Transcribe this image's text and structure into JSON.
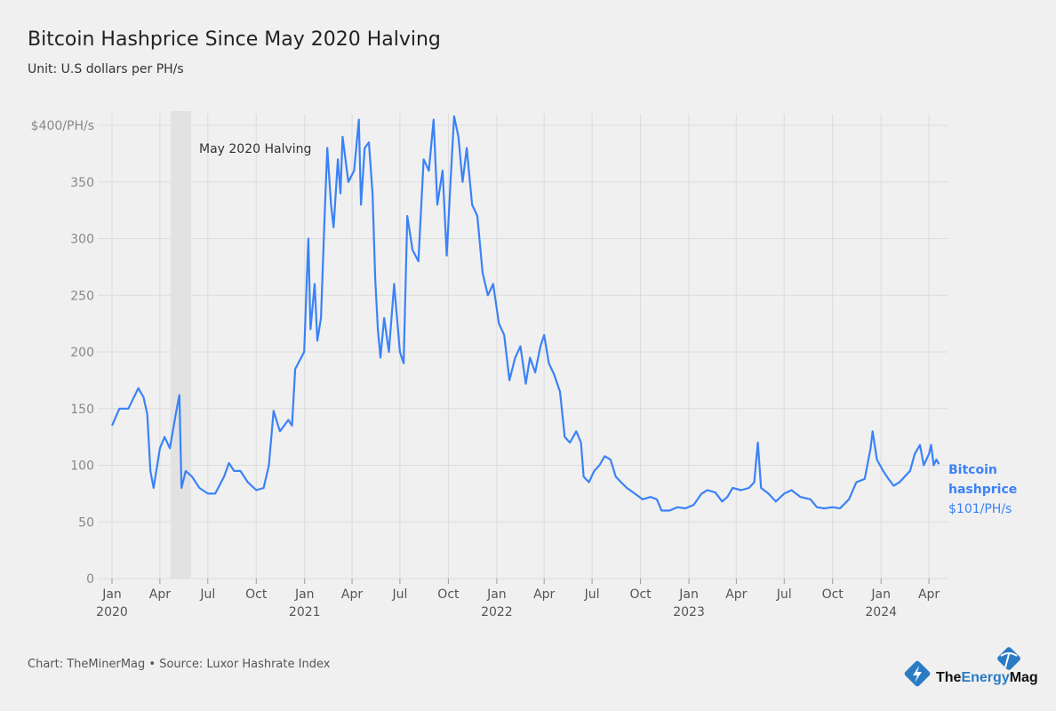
{
  "chart_data": {
    "type": "line",
    "title": "Bitcoin Hashprice Since May 2020 Halving",
    "subtitle": "Unit: U.S dollars per PH/s",
    "ylim": [
      0,
      400
    ],
    "y_ticks": [
      "0",
      "50",
      "100",
      "150",
      "200",
      "250",
      "300",
      "350",
      "$400/PH/s"
    ],
    "y_tick_values": [
      0,
      50,
      100,
      150,
      200,
      250,
      300,
      350,
      400
    ],
    "x_range": [
      "2020-01-01",
      "2024-04-20"
    ],
    "x_ticks": [
      {
        "date": "2020-01-01",
        "label": "Jan",
        "year": "2020"
      },
      {
        "date": "2020-04-01",
        "label": "Apr"
      },
      {
        "date": "2020-07-01",
        "label": "Jul"
      },
      {
        "date": "2020-10-01",
        "label": "Oct"
      },
      {
        "date": "2021-01-01",
        "label": "Jan",
        "year": "2021"
      },
      {
        "date": "2021-04-01",
        "label": "Apr"
      },
      {
        "date": "2021-07-01",
        "label": "Jul"
      },
      {
        "date": "2021-10-01",
        "label": "Oct"
      },
      {
        "date": "2022-01-01",
        "label": "Jan",
        "year": "2022"
      },
      {
        "date": "2022-04-01",
        "label": "Apr"
      },
      {
        "date": "2022-07-01",
        "label": "Jul"
      },
      {
        "date": "2022-10-01",
        "label": "Oct"
      },
      {
        "date": "2023-01-01",
        "label": "Jan",
        "year": "2023"
      },
      {
        "date": "2023-04-01",
        "label": "Apr"
      },
      {
        "date": "2023-07-01",
        "label": "Jul"
      },
      {
        "date": "2023-10-01",
        "label": "Oct"
      },
      {
        "date": "2024-01-01",
        "label": "Jan",
        "year": "2024"
      },
      {
        "date": "2024-04-01",
        "label": "Apr"
      }
    ],
    "grid": true,
    "annotation": {
      "label": "May 2020 Halving",
      "start": "2020-04-21",
      "end": "2020-05-30"
    },
    "series": [
      {
        "name": "Bitcoin hashprice",
        "end_label": "$101/PH/s",
        "color": "#3b82f6",
        "points": [
          [
            "2020-01-01",
            135
          ],
          [
            "2020-01-15",
            150
          ],
          [
            "2020-02-01",
            150
          ],
          [
            "2020-02-20",
            168
          ],
          [
            "2020-03-01",
            160
          ],
          [
            "2020-03-08",
            145
          ],
          [
            "2020-03-14",
            95
          ],
          [
            "2020-03-20",
            80
          ],
          [
            "2020-04-01",
            115
          ],
          [
            "2020-04-10",
            125
          ],
          [
            "2020-04-20",
            115
          ],
          [
            "2020-05-01",
            145
          ],
          [
            "2020-05-08",
            162
          ],
          [
            "2020-05-12",
            80
          ],
          [
            "2020-05-20",
            95
          ],
          [
            "2020-06-01",
            90
          ],
          [
            "2020-06-15",
            80
          ],
          [
            "2020-07-01",
            75
          ],
          [
            "2020-07-15",
            75
          ],
          [
            "2020-08-01",
            90
          ],
          [
            "2020-08-10",
            102
          ],
          [
            "2020-08-20",
            95
          ],
          [
            "2020-09-01",
            95
          ],
          [
            "2020-09-15",
            85
          ],
          [
            "2020-10-01",
            78
          ],
          [
            "2020-10-15",
            80
          ],
          [
            "2020-10-25",
            100
          ],
          [
            "2020-11-03",
            148
          ],
          [
            "2020-11-15",
            130
          ],
          [
            "2020-12-01",
            140
          ],
          [
            "2020-12-08",
            135
          ],
          [
            "2020-12-14",
            185
          ],
          [
            "2020-12-31",
            200
          ],
          [
            "2021-01-04",
            250
          ],
          [
            "2021-01-08",
            300
          ],
          [
            "2021-01-12",
            220
          ],
          [
            "2021-01-20",
            260
          ],
          [
            "2021-01-25",
            210
          ],
          [
            "2021-02-01",
            230
          ],
          [
            "2021-02-08",
            320
          ],
          [
            "2021-02-13",
            380
          ],
          [
            "2021-02-20",
            330
          ],
          [
            "2021-02-25",
            310
          ],
          [
            "2021-03-05",
            370
          ],
          [
            "2021-03-10",
            340
          ],
          [
            "2021-03-14",
            390
          ],
          [
            "2021-03-25",
            350
          ],
          [
            "2021-04-05",
            360
          ],
          [
            "2021-04-14",
            405
          ],
          [
            "2021-04-18",
            330
          ],
          [
            "2021-04-25",
            380
          ],
          [
            "2021-05-03",
            385
          ],
          [
            "2021-05-10",
            340
          ],
          [
            "2021-05-15",
            265
          ],
          [
            "2021-05-20",
            220
          ],
          [
            "2021-05-25",
            195
          ],
          [
            "2021-06-01",
            230
          ],
          [
            "2021-06-10",
            200
          ],
          [
            "2021-06-20",
            260
          ],
          [
            "2021-07-01",
            200
          ],
          [
            "2021-07-08",
            190
          ],
          [
            "2021-07-15",
            320
          ],
          [
            "2021-07-25",
            290
          ],
          [
            "2021-08-05",
            280
          ],
          [
            "2021-08-15",
            370
          ],
          [
            "2021-08-25",
            360
          ],
          [
            "2021-09-03",
            405
          ],
          [
            "2021-09-10",
            330
          ],
          [
            "2021-09-20",
            360
          ],
          [
            "2021-09-28",
            285
          ],
          [
            "2021-10-05",
            350
          ],
          [
            "2021-10-12",
            408
          ],
          [
            "2021-10-20",
            390
          ],
          [
            "2021-10-28",
            350
          ],
          [
            "2021-11-05",
            380
          ],
          [
            "2021-11-15",
            330
          ],
          [
            "2021-11-25",
            320
          ],
          [
            "2021-12-05",
            270
          ],
          [
            "2021-12-15",
            250
          ],
          [
            "2021-12-25",
            260
          ],
          [
            "2022-01-05",
            225
          ],
          [
            "2022-01-15",
            215
          ],
          [
            "2022-01-25",
            175
          ],
          [
            "2022-02-05",
            195
          ],
          [
            "2022-02-15",
            205
          ],
          [
            "2022-02-25",
            172
          ],
          [
            "2022-03-05",
            195
          ],
          [
            "2022-03-15",
            182
          ],
          [
            "2022-03-25",
            205
          ],
          [
            "2022-04-01",
            215
          ],
          [
            "2022-04-10",
            190
          ],
          [
            "2022-04-20",
            180
          ],
          [
            "2022-05-01",
            165
          ],
          [
            "2022-05-10",
            125
          ],
          [
            "2022-05-20",
            120
          ],
          [
            "2022-06-01",
            130
          ],
          [
            "2022-06-10",
            120
          ],
          [
            "2022-06-15",
            90
          ],
          [
            "2022-06-25",
            85
          ],
          [
            "2022-07-05",
            95
          ],
          [
            "2022-07-15",
            100
          ],
          [
            "2022-07-25",
            108
          ],
          [
            "2022-08-05",
            105
          ],
          [
            "2022-08-15",
            90
          ],
          [
            "2022-08-25",
            85
          ],
          [
            "2022-09-05",
            80
          ],
          [
            "2022-09-20",
            75
          ],
          [
            "2022-10-05",
            70
          ],
          [
            "2022-10-20",
            72
          ],
          [
            "2022-11-01",
            70
          ],
          [
            "2022-11-10",
            60
          ],
          [
            "2022-11-25",
            60
          ],
          [
            "2022-12-10",
            63
          ],
          [
            "2022-12-25",
            62
          ],
          [
            "2023-01-10",
            65
          ],
          [
            "2023-01-25",
            75
          ],
          [
            "2023-02-05",
            78
          ],
          [
            "2023-02-20",
            76
          ],
          [
            "2023-03-05",
            68
          ],
          [
            "2023-03-15",
            72
          ],
          [
            "2023-03-25",
            80
          ],
          [
            "2023-04-10",
            78
          ],
          [
            "2023-04-25",
            80
          ],
          [
            "2023-05-05",
            85
          ],
          [
            "2023-05-12",
            120
          ],
          [
            "2023-05-18",
            80
          ],
          [
            "2023-06-01",
            75
          ],
          [
            "2023-06-15",
            68
          ],
          [
            "2023-07-01",
            75
          ],
          [
            "2023-07-15",
            78
          ],
          [
            "2023-08-01",
            72
          ],
          [
            "2023-08-20",
            70
          ],
          [
            "2023-09-01",
            63
          ],
          [
            "2023-09-15",
            62
          ],
          [
            "2023-10-01",
            63
          ],
          [
            "2023-10-15",
            62
          ],
          [
            "2023-11-01",
            70
          ],
          [
            "2023-11-15",
            85
          ],
          [
            "2023-12-01",
            88
          ],
          [
            "2023-12-12",
            115
          ],
          [
            "2023-12-16",
            130
          ],
          [
            "2023-12-24",
            105
          ],
          [
            "2024-01-05",
            95
          ],
          [
            "2024-01-15",
            88
          ],
          [
            "2024-01-25",
            82
          ],
          [
            "2024-02-05",
            85
          ],
          [
            "2024-02-15",
            90
          ],
          [
            "2024-02-25",
            95
          ],
          [
            "2024-03-05",
            110
          ],
          [
            "2024-03-15",
            118
          ],
          [
            "2024-03-22",
            100
          ],
          [
            "2024-04-01",
            110
          ],
          [
            "2024-04-05",
            118
          ],
          [
            "2024-04-10",
            100
          ],
          [
            "2024-04-15",
            105
          ],
          [
            "2024-04-20",
            101
          ]
        ]
      }
    ]
  },
  "footer": "Chart: TheMinerMag • Source: Luxor Hashrate Index",
  "logo": {
    "text_part1": "The",
    "text_part2": "Energy",
    "text_part3": "Mag",
    "color_blue": "#2b7bc4"
  }
}
